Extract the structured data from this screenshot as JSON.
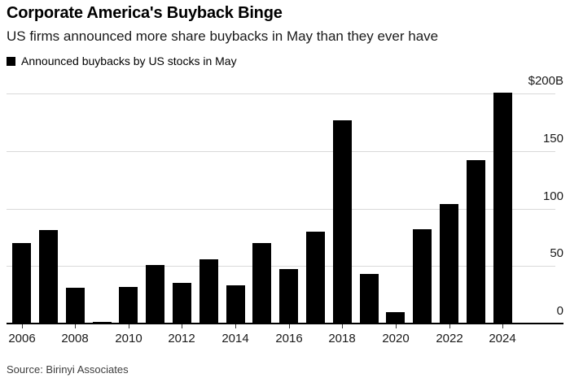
{
  "header": {
    "title": "Corporate America's Buyback Binge",
    "subtitle": "US firms announced more share buybacks in May than they ever have",
    "legend": {
      "swatch_color": "#000000",
      "label": "Announced buybacks by US stocks in May"
    }
  },
  "chart_data": {
    "type": "bar",
    "title": "Corporate America's Buyback Binge",
    "subtitle": "US firms announced more share buybacks in May than they ever have",
    "legend_entries": [
      "Announced buybacks by US stocks in May"
    ],
    "unit": "billions of US dollars",
    "categories": [
      2006,
      2007,
      2008,
      2009,
      2010,
      2011,
      2012,
      2013,
      2014,
      2015,
      2016,
      2017,
      2018,
      2019,
      2020,
      2021,
      2022,
      2023,
      2024
    ],
    "values": [
      70,
      81,
      31,
      1.5,
      32,
      51,
      35,
      56,
      33,
      70,
      47,
      80,
      177,
      43,
      10,
      82,
      104,
      142,
      201
    ],
    "x_tick_years": [
      2006,
      2008,
      2010,
      2012,
      2014,
      2016,
      2018,
      2020,
      2022,
      2024
    ],
    "y_axis": {
      "side": "right",
      "range": [
        0,
        200
      ],
      "ticks": [
        {
          "value": 200,
          "label": "$200B"
        },
        {
          "value": 150,
          "label": "150"
        },
        {
          "value": 100,
          "label": "100"
        },
        {
          "value": 50,
          "label": "50"
        },
        {
          "value": 0,
          "label": "0"
        }
      ]
    },
    "grid": "horizontal",
    "colors": {
      "bar": "#000000",
      "gridline": "#d9d9d9",
      "baseline": "#000000",
      "tick": "#333333"
    }
  },
  "footer": {
    "source": "Source: Birinyi Associates"
  }
}
